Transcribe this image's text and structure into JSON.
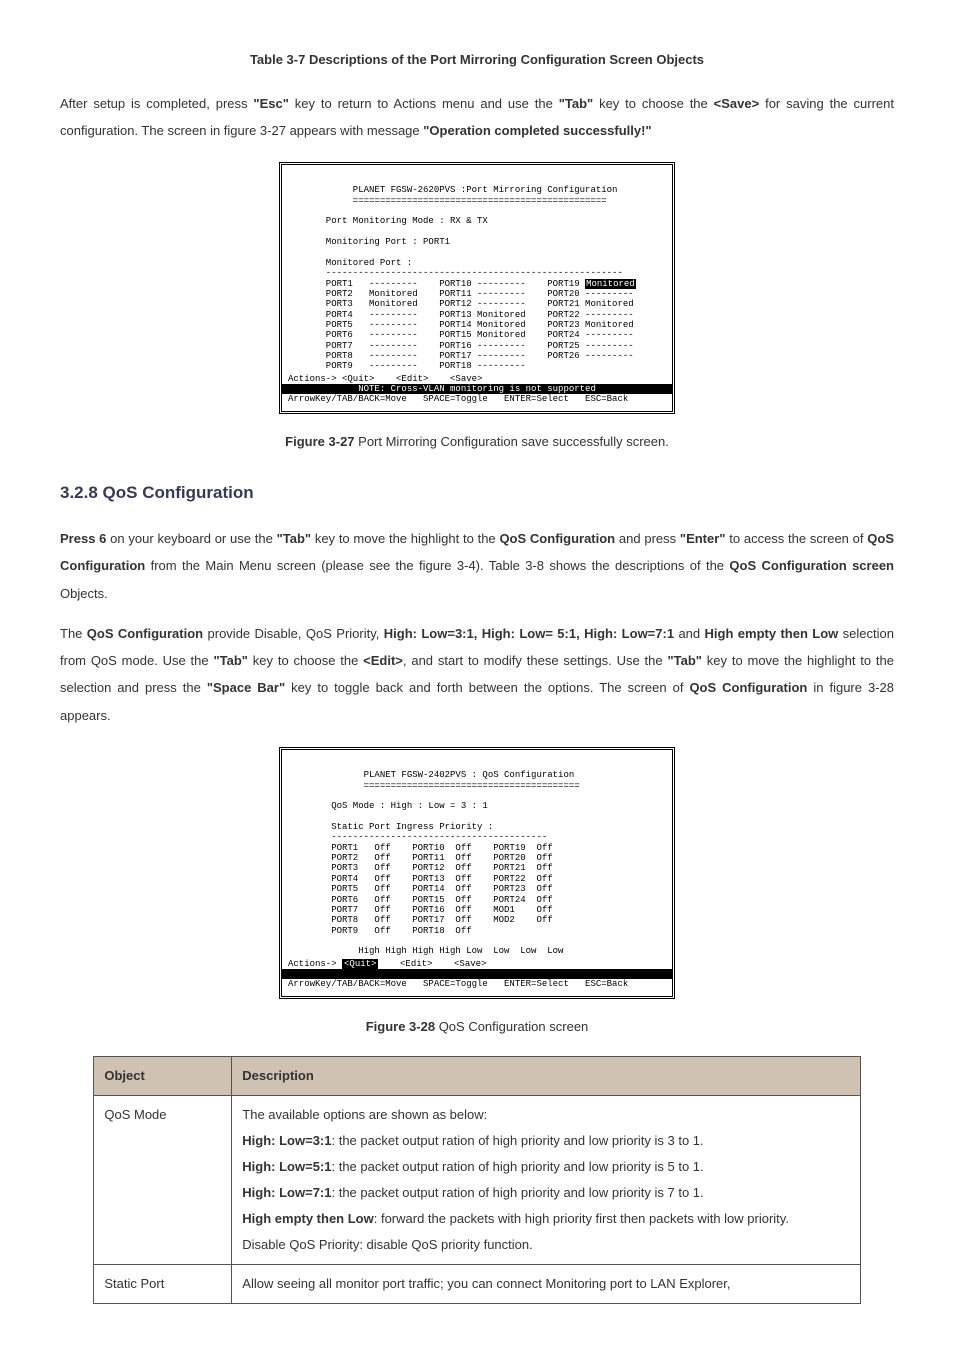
{
  "caption_table37": "Table 3-7 Descriptions of the Port Mirroring Configuration Screen Objects",
  "para1_a": "After setup is completed, press ",
  "para1_b": "\"Esc\"",
  "para1_c": " key to return to Actions menu and use the ",
  "para1_d": "\"Tab\"",
  "para1_e": " key to choose the ",
  "para1_f": "<Save>",
  "para1_g": " for saving the current configuration. The screen in figure 3-27 appears with message ",
  "para1_h": "\"Operation completed successfully!\"",
  "term1": {
    "title": "            PLANET FGSW-2620PVS :Port Mirroring Configuration",
    "rule1": "            ===============================================",
    "line_mode": "       Port Monitoring Mode : RX & TX",
    "line_mport": "       Monitoring Port : PORT1",
    "line_hdr": "       Monitored Port :",
    "rule2": "       -------------------------------------------------------",
    "r1a": "       PORT1   ---------    PORT10 ---------    PORT19 ",
    "r1b": "Monitored",
    "r2": "       PORT2   Monitored    PORT11 ---------    PORT20 ---------",
    "r3": "       PORT3   Monitored    PORT12 ---------    PORT21 Monitored",
    "r4": "       PORT4   ---------    PORT13 Monitored    PORT22 ---------",
    "r5": "       PORT5   ---------    PORT14 Monitored    PORT23 Monitored",
    "r6": "       PORT6   ---------    PORT15 Monitored    PORT24 ---------",
    "r7": "       PORT7   ---------    PORT16 ---------    PORT25 ---------",
    "r8": "       PORT8   ---------    PORT17 ---------    PORT26 ---------",
    "r9": "       PORT9   ---------    PORT18 ---------",
    "actions": "Actions-> <Quit>    <Edit>    <Save>",
    "note": "             NOTE: Cross-VLAN monitoring is not supported          ",
    "help": "ArrowKey/TAB/BACK=Move   SPACE=Toggle   ENTER=Select   ESC=Back"
  },
  "caption_fig327_a": "Figure 3-27",
  "caption_fig327_b": " Port Mirroring Configuration save successfully screen.",
  "h328": "3.2.8 QoS Configuration",
  "p2_a": "Press 6",
  "p2_b": " on your keyboard or use the ",
  "p2_c": "\"Tab\"",
  "p2_d": " key to move the highlight to the ",
  "p2_e": "QoS Configuration",
  "p2_f": " and press ",
  "p2_g": "\"Enter\"",
  "p2_h": " to access the screen of ",
  "p2_i": "QoS Configuration",
  "p2_j": " from the Main Menu screen (please see the figure 3-4). Table 3-8 shows the descriptions of the ",
  "p2_k": "QoS Configuration screen",
  "p2_l": " Objects.",
  "p3_a": "The ",
  "p3_b": "QoS Configuration",
  "p3_c": " provide Disable, QoS Priority, ",
  "p3_d": "High: Low=3:1, High: Low= 5:1, High: Low=7:1",
  "p3_e": " and ",
  "p3_f": "High empty then Low",
  "p3_g": " selection from QoS mode. Use the ",
  "p3_h": "\"Tab\"",
  "p3_i": " key to choose the ",
  "p3_j": "<Edit>",
  "p3_k": ", and start to modify these settings. Use the ",
  "p3_l": "\"Tab\"",
  "p3_m": " key to move the highlight to the selection and press the ",
  "p3_n": "\"Space Bar\"",
  "p3_o": " key to toggle back and forth between the options. The screen of ",
  "p3_p": "QoS Configuration",
  "p3_q": " in figure 3-28 appears.",
  "term2": {
    "title": "              PLANET FGSW-2402PVS : QoS Configuration",
    "rule1": "              ========================================",
    "mode": "        QoS Mode : High : Low = 3 : 1",
    "hdr": "        Static Port Ingress Priority :",
    "rule2": "        ----------------------------------------",
    "r1": "        PORT1   Off    PORT10  Off    PORT19  Off",
    "r2": "        PORT2   Off    PORT11  Off    PORT20  Off",
    "r3": "        PORT3   Off    PORT12  Off    PORT21  Off",
    "r4": "        PORT4   Off    PORT13  Off    PORT22  Off",
    "r5": "        PORT5   Off    PORT14  Off    PORT23  Off",
    "r6": "        PORT6   Off    PORT15  Off    PORT24  Off",
    "r7": "        PORT7   Off    PORT16  Off    MOD1    Off",
    "r8": "        PORT8   Off    PORT17  Off    MOD2    Off",
    "r9": "        PORT9   Off    PORT18  Off",
    "prio": "             High High High High Low  Low  Low  Low",
    "actions_a": "Actions-> ",
    "actions_b": "<Quit>",
    "actions_c": "    <Edit>    <Save>",
    "sep": "                                                              ",
    "help": "ArrowKey/TAB/BACK=Move   SPACE=Toggle   ENTER=Select   ESC=Back"
  },
  "caption_fig328_a": "Figure 3-28",
  "caption_fig328_b": " QoS Configuration screen",
  "table": {
    "h1": "Object",
    "h2": "Description",
    "r1c1": "QoS Mode",
    "r1_line1": "The available options are shown as below:",
    "r1_b1a": "High: Low=3:1",
    "r1_b1b": ": the packet output ration of high priority and low priority is 3 to 1.",
    "r1_b2a": "High: Low=5:1",
    "r1_b2b": ": the packet output ration of high priority and low priority is 5 to 1.",
    "r1_b3a": "High: Low=7:1",
    "r1_b3b": ": the packet output ration of high priority and low priority is 7 to 1.",
    "r1_b4a": "High empty then Low",
    "r1_b4b": ": forward the packets with high priority first then packets with low priority.",
    "r1_b5": "Disable QoS Priority: disable QoS priority function.",
    "r2c1": "Static Port",
    "r2c2": "Allow seeing all monitor port traffic; you can connect Monitoring port to LAN Explorer,"
  }
}
